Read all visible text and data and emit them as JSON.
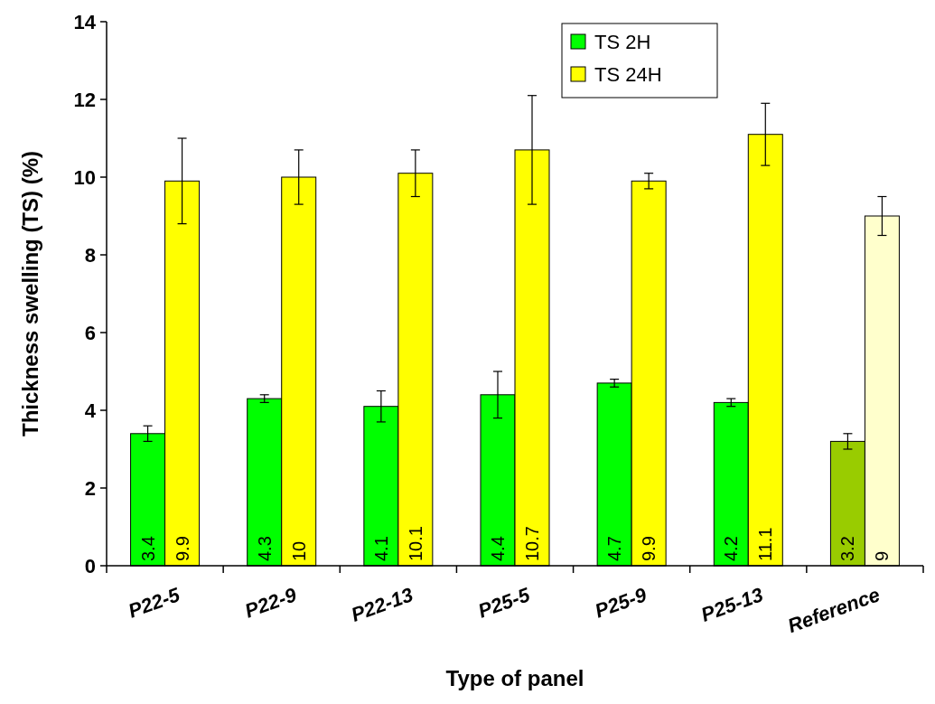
{
  "chart_data": {
    "type": "bar",
    "xlabel": "Type of panel",
    "ylabel": "Thickness swelling (TS) (%)",
    "categories": [
      "P22-5",
      "P22-9",
      "P22-13",
      "P25-5",
      "P25-9",
      "P25-13",
      "Reference"
    ],
    "series": [
      {
        "name": "TS 2H",
        "color": "#00ff00",
        "colors": [
          "#00ff00",
          "#00ff00",
          "#00ff00",
          "#00ff00",
          "#00ff00",
          "#00ff00",
          "#99cc00"
        ],
        "values": [
          3.4,
          4.3,
          4.1,
          4.4,
          4.7,
          4.2,
          3.2
        ],
        "errors": [
          0.2,
          0.1,
          0.4,
          0.6,
          0.1,
          0.1,
          0.2
        ]
      },
      {
        "name": "TS 24H",
        "color": "#ffff00",
        "colors": [
          "#ffff00",
          "#ffff00",
          "#ffff00",
          "#ffff00",
          "#ffff00",
          "#ffff00",
          "#ffffcc"
        ],
        "values": [
          9.9,
          10,
          10.1,
          10.7,
          9.9,
          11.1,
          9
        ],
        "errors": [
          1.1,
          0.7,
          0.6,
          1.4,
          0.2,
          0.8,
          0.5
        ]
      }
    ],
    "ylim": [
      0,
      14
    ],
    "yticks": [
      0,
      2,
      4,
      6,
      8,
      10,
      12,
      14
    ],
    "data_labels": true,
    "legend": "top right",
    "grid": false
  }
}
